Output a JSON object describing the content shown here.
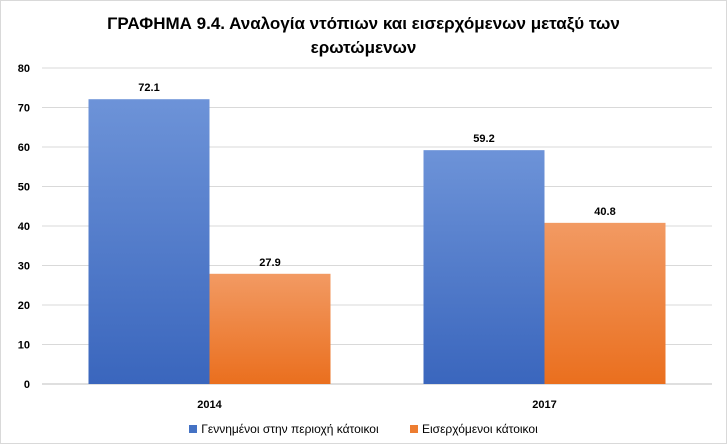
{
  "chart_data": {
    "type": "bar",
    "title_lines": [
      "ΓΡΑΦΗΜΑ 9.4. Αναλογία ντόπιων και εισερχόμενων μεταξύ των",
      "ερωτώμενων"
    ],
    "categories": [
      "2014",
      "2017"
    ],
    "series": [
      {
        "name": "Γεννημένοι στην περιοχή κάτοικοι",
        "values": [
          72.1,
          59.2
        ],
        "color": "#4472c4"
      },
      {
        "name": "Εισερχόμενοι κάτοικοι",
        "values": [
          27.9,
          40.8
        ],
        "color": "#ed7d31"
      }
    ],
    "data_labels": [
      [
        "72.1",
        "59.2"
      ],
      [
        "27.9",
        "40.8"
      ]
    ],
    "ylim": [
      0,
      80
    ],
    "yticks": [
      0,
      10,
      20,
      30,
      40,
      50,
      60,
      70,
      80
    ],
    "xlabel": "",
    "ylabel": "",
    "grid": true,
    "legend_position": "bottom"
  }
}
